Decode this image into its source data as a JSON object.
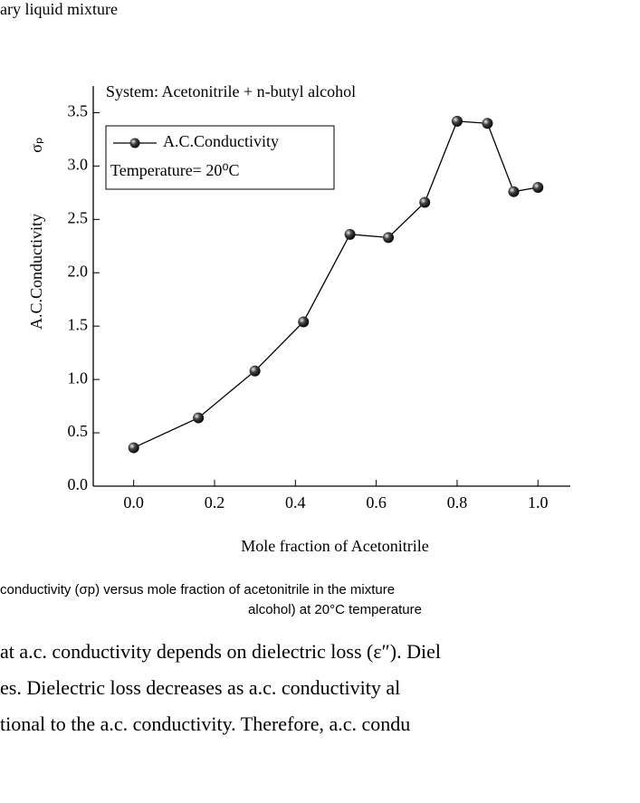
{
  "page_text_top": "ary liquid mixture",
  "chart_data": {
    "type": "line",
    "annotation": "System: Acetonitrile + n-butyl alcohol",
    "legend_note": "Temperature= 20⁰C",
    "x_label": "Mole fraction of Acetonitrile",
    "y_label": "A.C.Conductivity",
    "y_label_symbol": "σₚ",
    "x": [
      0,
      0.16,
      0.3,
      0.42,
      0.535,
      0.63,
      0.72,
      0.8,
      0.875,
      0.94,
      1.0
    ],
    "series": [
      {
        "name": "A.C.Conductivity",
        "color": "#000000",
        "values": [
          0.36,
          0.64,
          1.08,
          1.54,
          2.36,
          2.33,
          2.66,
          3.42,
          3.4,
          2.76,
          2.8
        ]
      }
    ],
    "xlim": [
      -0.1,
      1.08
    ],
    "ylim": [
      0,
      3.75
    ],
    "xticks": [
      {
        "value": 0,
        "label": "0.0"
      },
      0.2,
      0.4,
      0.6,
      0.8,
      {
        "value": 1,
        "label": "1.0"
      }
    ],
    "yticks": [
      {
        "value": 0,
        "label": "0.0"
      },
      0.5,
      {
        "value": 1,
        "label": "1.0"
      },
      1.5,
      {
        "value": 2,
        "label": "2.0"
      },
      2.5,
      {
        "value": 3,
        "label": "3.0"
      },
      3.5
    ],
    "grid": false
  },
  "caption": [
    "conductivity (σp) versus mole fraction of acetonitrile in the mixture",
    "alcohol) at 20°C temperature"
  ],
  "body": [
    "at a.c. conductivity depends on dielectric loss (ε″). Diel",
    "es. Dielectric loss decreases as a.c. conductivity al",
    "tional to the a.c. conductivity. Therefore, a.c. condu"
  ]
}
